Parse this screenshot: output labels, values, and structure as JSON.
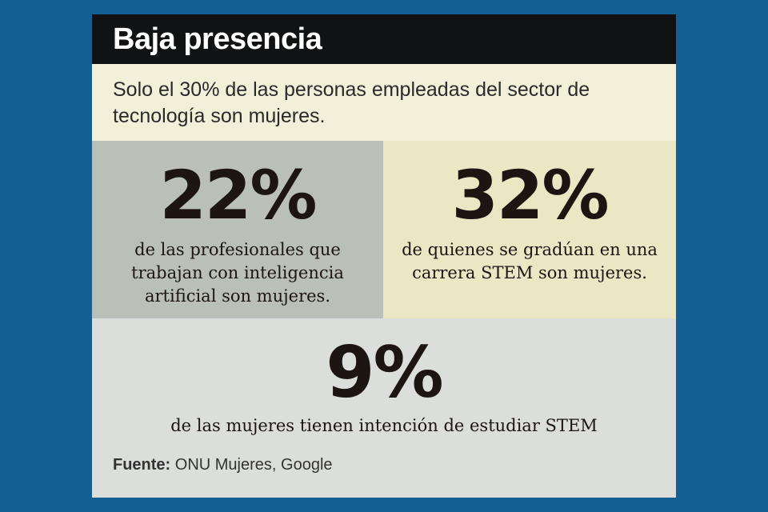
{
  "header": {
    "title": "Baja presencia"
  },
  "intro": {
    "text": "Solo el 30% de las personas empleadas del sector de tecnología son mujeres."
  },
  "stats": [
    {
      "value": "22%",
      "description": "de las profesionales que trabajan con inteligencia artificial son mujeres."
    },
    {
      "value": "32%",
      "description": "de quienes se gradúan en una carrera STEM son mujeres."
    },
    {
      "value": "9%",
      "description": "de las mujeres tienen intención de estudiar STEM"
    }
  ],
  "source": {
    "label": "Fuente:",
    "text": " ONU Mujeres, Google"
  },
  "colors": {
    "background": "#145f91",
    "header": "#111213",
    "intro": "#f3f0da",
    "stat_left": "#babfb8",
    "stat_right": "#ebe6c3",
    "bottom": "#dcdedb"
  }
}
